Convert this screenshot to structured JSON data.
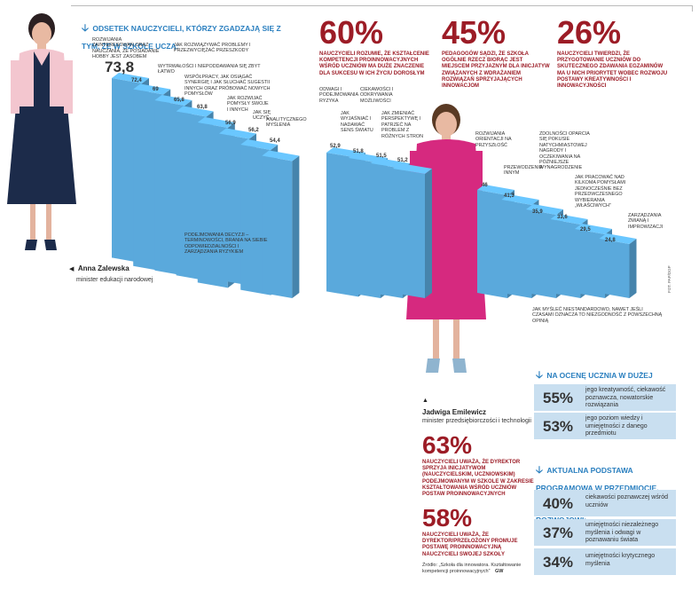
{
  "chart_data": [
    {
      "type": "bar",
      "title": "ODSETEK NAUCZYCIELI, KTÓRZY ZGADZAJĄ SIĘ Z TYM, ŻE W SZKOLE UCZĄ:",
      "series": [
        {
          "name": "",
          "values": [
            73.8,
            72.4,
            69,
            65.8,
            63.8,
            56.9,
            56.2,
            54.4,
            52.9,
            51.8,
            51.5,
            51.2,
            46,
            41.3,
            35.9,
            33.6,
            29.5,
            24.8
          ]
        }
      ],
      "labels": [
        "ROZWIJANIA ZAINTERESOWAŃ ORAZ NAUCZANIA, ŻE POSIADANIE HOBBY JEST ZASOBEM",
        "JAK ROZWIĄZYWAĆ PROBLEMY I PRZEZWYCIĘŻAĆ PRZESZKODY",
        "WYTRWAŁOŚCI I NIEPODDAWANIA SIĘ ZBYT ŁATWO",
        "WSPÓŁPRACY, JAK OSIĄGAĆ SYNERGIĘ I JAK SŁUCHAĆ SUGESTII INNYCH ORAZ PRÓBOWAĆ NOWYCH POMYSŁÓW",
        "PODEJMOWANIA DECYZJI – TERMINOWOŚCI, BRANIA NA SIEBIE ODPOWIEDZIALNOŚCI I ZARZĄDZANIA RYZYKIEM",
        "JAK ROZWIJAĆ POMYSŁY SWOJE I INNYCH",
        "JAK SIĘ UCZYĆ",
        "ANALITYCZNEGO MYŚLENIA",
        "ODWAGI I PODEJMOWANIA RYZYKA",
        "JAK WYJAŚNIAĆ I NADAWAĆ SENS ŚWIATU",
        "CIEKAWOŚCI I ODKRYWANIA MOŻLIWOŚCI",
        "JAK ZMIENIAĆ PERSPEKTYWĘ I PATRZEĆ NA PROBLEM Z RÓŻNYCH STRON",
        "ROZWIJANIA ORIENTACJI NA PRZYSZŁOŚĆ",
        "PRZEWODZENIA INNYM",
        "ZDOLNOŚCI OPARCIA SIĘ POKUSIE NATYCHMIASTOWEJ NAGRODY I OCZEKIWANIA NA PÓŹNIEJSZE WYNAGRODZENIE",
        "JAK MYŚLEĆ NIESTANDARDOWO, NAWET JEŚLI CZASAMI OZNACZA TO NIEZGODNOŚĆ Z POWSZECHNĄ OPINIĄ",
        "JAK PRACOWAĆ NAD KILKOMA POMYSŁAMI JEDNOCZEŚNIE BEZ PRZEDWCZESNEGO WYBIERANIA „WŁAŚCIWYCH”",
        "ZARZĄDZANIA ZMIANĄ I IMPROWIZACJI"
      ],
      "value_labels": [
        "73,8",
        "72,4",
        "69",
        "65,8",
        "63,8",
        "56,9",
        "56,2",
        "54,4",
        "52,9",
        "51,8",
        "51,5",
        "51,2",
        "46",
        "41,3",
        "35,9",
        "33,6",
        "29,5",
        "24,8"
      ],
      "bar_color": "#5aa9dc"
    },
    {
      "type": "table",
      "title": "NA OCENĘ UCZNIA W DUŻEJ MIERZE MAJĄ WPŁYW:",
      "values": [
        55,
        53
      ],
      "value_labels": [
        "55%",
        "53%"
      ],
      "labels": [
        "jego kreatywność, ciekawość poznawcza, nowatorskie rozwiązania",
        "jego poziom wiedzy i umiejętności z danego przedmiotu"
      ]
    },
    {
      "type": "table",
      "title": "AKTUALNA PODSTAWA PROGRAMOWA W PRZEDMIOCIE, KTÓREGO NAUCZAM, SPRZYJA ROZWOJOWI:",
      "values": [
        40,
        37,
        34
      ],
      "value_labels": [
        "40%",
        "37%",
        "34%"
      ],
      "labels": [
        "ciekawości poznawczej wśród uczniów",
        "umiejętności niezależnego myślenia i odwagi w poznawaniu świata",
        "umiejętności krytycznego myślenia"
      ]
    }
  ],
  "stats_top": [
    {
      "value": "60%",
      "text": "NAUCZYCIELI ROZUMIE, ŻE KSZTAŁCENIE KOMPETENCJI PROINNOWACYJNYCH WŚRÓD UCZNIÓW MA DUŻE ZNACZENIE DLA SUKCESU W ICH ŻYCIU DOROSŁYM"
    },
    {
      "value": "45%",
      "text": "PEDAGOGÓW SĄDZI, ŻE SZKOŁA OGÓLNIE RZECZ BIORĄC JEST MIEJSCEM PRZYJAZNYM DLA INICJATYW ZWIĄZANYCH Z WDRAŻANIEM ROZWIĄZAŃ SPRZYJAJĄCYCH INNOWACJOM"
    },
    {
      "value": "26%",
      "text": "NAUCZYCIELI TWIERDZI, ŻE PRZYGOTOWANIE UCZNIÓW DO SKUTECZNEGO ZDAWANIA EGZAMINÓW MA U NICH PRIORYTET WOBEC ROZWOJU POSTAWY KREATYWNOŚCI I INNOWACYJNOŚCI"
    }
  ],
  "stats_bottom": [
    {
      "value": "63%",
      "text": "NAUCZYCIELI UWAŻA, ŻE DYREKTOR SPRZYJA INICJATYWOM (NAUCZYCIELSKIM, UCZNIOWSKIM) PODEJMOWANYM W SZKOLE W ZAKRESIE KSZTAŁTOWANIA WŚRÓD UCZNIÓW POSTAW PROINNOWACYJNYCH"
    },
    {
      "value": "58%",
      "text": "NAUCZYCIELI UWAŻA, ŻE DYREKTOR/PRZEŁOŻONY PROMUJE POSTAWĘ PROINNOWACYJNĄ NAUCZYCIELI SWOJEJ SZKOŁY"
    }
  ],
  "people": [
    {
      "name": "Anna Zalewska",
      "role": "minister edukacji narodowej"
    },
    {
      "name": "Jadwiga Emilewicz",
      "role": "minister przedsiębiorczości i technologii"
    }
  ],
  "source": "Źródło: „Szkoła dla innowatora. Kształtowanie kompetencji proinnowacyjnych”",
  "source_tag": "GW",
  "photo_credit": "FOT. PAP/DGP",
  "colors": {
    "blue": "#5aa9dc",
    "red": "#9c1c26",
    "title_blue": "#2a7fbf",
    "panel": "#c9dff0"
  }
}
